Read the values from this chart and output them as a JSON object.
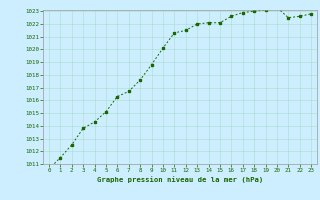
{
  "x": [
    0,
    1,
    2,
    3,
    4,
    5,
    6,
    7,
    8,
    9,
    10,
    11,
    12,
    13,
    14,
    15,
    16,
    17,
    18,
    19,
    20,
    21,
    22,
    23
  ],
  "y": [
    1010.6,
    1011.5,
    1012.5,
    1013.8,
    1014.3,
    1015.1,
    1016.3,
    1016.7,
    1017.6,
    1018.8,
    1020.1,
    1021.3,
    1021.5,
    1022.0,
    1022.1,
    1022.1,
    1022.6,
    1022.9,
    1023.0,
    1023.1,
    1023.3,
    1022.5,
    1022.6,
    1022.8
  ],
  "ylim": [
    1011,
    1023
  ],
  "yticks": [
    1011,
    1012,
    1013,
    1014,
    1015,
    1016,
    1017,
    1018,
    1019,
    1020,
    1021,
    1022,
    1023
  ],
  "xticks": [
    0,
    1,
    2,
    3,
    4,
    5,
    6,
    7,
    8,
    9,
    10,
    11,
    12,
    13,
    14,
    15,
    16,
    17,
    18,
    19,
    20,
    21,
    22,
    23
  ],
  "xlabel": "Graphe pression niveau de la mer (hPa)",
  "line_color": "#1a6600",
  "marker_color": "#1a6600",
  "bg_color": "#cceeff",
  "grid_color": "#aaddcc",
  "tick_label_color": "#1a6600",
  "xlabel_color": "#1a6600"
}
